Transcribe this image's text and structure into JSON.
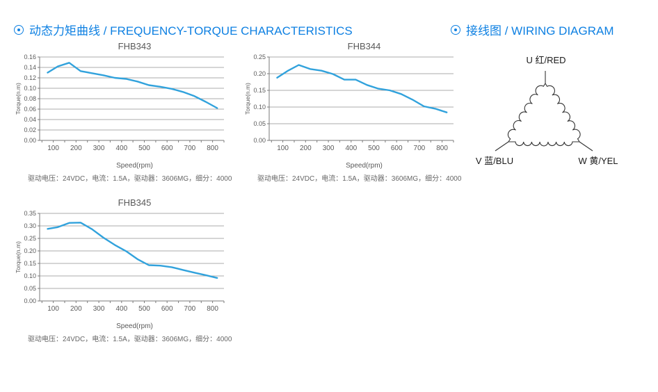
{
  "accent_color": "#0e80e2",
  "curve_color": "#31a2dc",
  "sections": {
    "left": {
      "icon_name": "circle-dot-icon",
      "title": "动态力矩曲线 / FREQUENCY-TORQUE CHARACTERISTICS"
    },
    "right": {
      "icon_name": "circle-dot-icon",
      "title": "接线图 / WIRING DIAGRAM"
    }
  },
  "chart_data": [
    {
      "type": "line",
      "title": "FHB343",
      "xlabel": "Speed(rpm)",
      "ylabel": "Torque(n.m)",
      "caption": "驱动电压：24VDC，电流：1.5A，驱动器：3606MG，细分：4000",
      "x": [
        75,
        120,
        170,
        220,
        270,
        320,
        370,
        420,
        470,
        520,
        570,
        620,
        670,
        720,
        770,
        820
      ],
      "values": [
        0.13,
        0.142,
        0.149,
        0.133,
        0.129,
        0.125,
        0.12,
        0.118,
        0.113,
        0.106,
        0.103,
        0.099,
        0.093,
        0.085,
        0.074,
        0.062
      ],
      "ylim": [
        0,
        0.16
      ],
      "ystep": 0.02,
      "xlim": [
        40,
        850
      ],
      "xtick_labels": [
        100,
        200,
        300,
        400,
        500,
        600,
        700,
        800
      ],
      "grid": true,
      "legend": false
    },
    {
      "type": "line",
      "title": "FHB344",
      "xlabel": "Speed(rpm)",
      "ylabel": "Torque(n.m)",
      "caption": "驱动电压：24VDC，电流：1.5A，驱动器：3606MG，细分：4000",
      "x": [
        75,
        120,
        170,
        220,
        270,
        320,
        370,
        420,
        470,
        520,
        570,
        620,
        670,
        720,
        770,
        820
      ],
      "values": [
        0.188,
        0.208,
        0.226,
        0.214,
        0.209,
        0.199,
        0.182,
        0.182,
        0.166,
        0.155,
        0.15,
        0.139,
        0.122,
        0.102,
        0.095,
        0.084
      ],
      "ylim": [
        0,
        0.25
      ],
      "ystep": 0.05,
      "xlim": [
        40,
        850
      ],
      "xtick_labels": [
        100,
        200,
        300,
        400,
        500,
        600,
        700,
        800
      ],
      "grid": true,
      "legend": false
    },
    {
      "type": "line",
      "title": "FHB345",
      "xlabel": "Speed(rpm)",
      "ylabel": "Torque(n.m)",
      "caption": "驱动电压：24VDC，电流：1.5A，驱动器：3606MG，细分：4000",
      "x": [
        75,
        120,
        170,
        220,
        270,
        320,
        370,
        420,
        470,
        520,
        570,
        620,
        670,
        720,
        770,
        820
      ],
      "values": [
        0.288,
        0.295,
        0.312,
        0.313,
        0.287,
        0.253,
        0.224,
        0.199,
        0.167,
        0.143,
        0.141,
        0.135,
        0.124,
        0.113,
        0.103,
        0.092
      ],
      "ylim": [
        0,
        0.35
      ],
      "ystep": 0.05,
      "xlim": [
        40,
        850
      ],
      "xtick_labels": [
        100,
        200,
        300,
        400,
        500,
        600,
        700,
        800
      ],
      "grid": true,
      "legend": false
    }
  ],
  "wiring": {
    "u_label": "U 红/RED",
    "v_label": "V 蓝/BLU",
    "w_label": "W 黄/YEL"
  }
}
